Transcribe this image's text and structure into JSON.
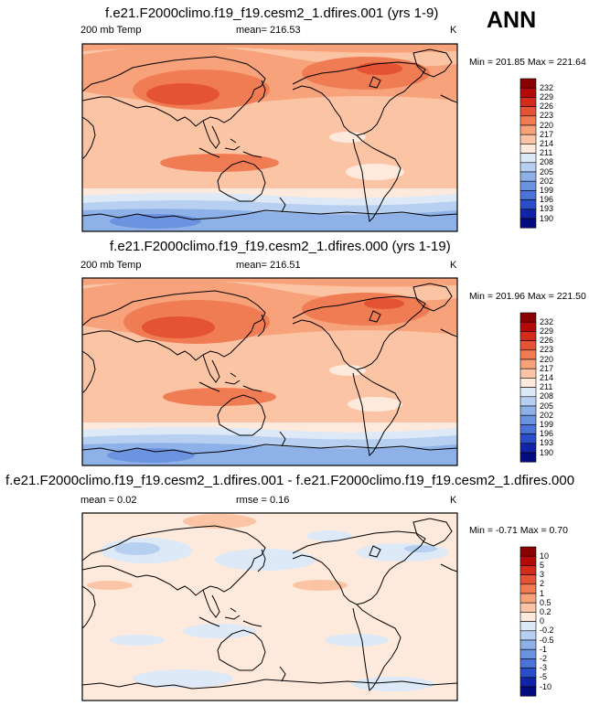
{
  "season": "ANN",
  "panels": [
    {
      "title": "f.e21.F2000climo.f19_f19.cesm2_1.dfires.001 (yrs 1-9)",
      "left_label": "200 mb Temp",
      "center_label": "mean= 216.53",
      "unit": "K",
      "minmax": "Min = 201.85 Max = 221.64"
    },
    {
      "title": "f.e21.F2000climo.f19_f19.cesm2_1.dfires.000 (yrs 1-19)",
      "left_label": "200 mb Temp",
      "center_label": "mean= 216.51",
      "unit": "K",
      "minmax": "Min = 201.96 Max = 221.50"
    },
    {
      "title": "f.e21.F2000climo.f19_f19.cesm2_1.dfires.001 - f.e21.F2000climo.f19_f19.cesm2_1.dfires.000",
      "left_label": "mean =   0.02",
      "center_label": "rmse =   0.16",
      "unit": "K",
      "minmax": "Min =  -0.71 Max =   0.70"
    }
  ],
  "colorbar_temp": {
    "levels": [
      "232",
      "229",
      "226",
      "223",
      "220",
      "217",
      "214",
      "211",
      "208",
      "205",
      "202",
      "199",
      "196",
      "193",
      "190"
    ],
    "colors": [
      "#8b0000",
      "#b40a0a",
      "#d42a1a",
      "#e55335",
      "#f07c54",
      "#f7a27a",
      "#fbc5a5",
      "#feeadc",
      "#dde9f7",
      "#b7cff0",
      "#8eb1e8",
      "#6c93e0",
      "#4a72d8",
      "#2a4ec9",
      "#1124a6",
      "#050c82"
    ]
  },
  "colorbar_diff": {
    "levels": [
      "10",
      "5",
      "3",
      "2",
      "1",
      "0.5",
      "0.2",
      "0",
      "-0.2",
      "-0.5",
      "-1",
      "-2",
      "-3",
      "-5",
      "-10"
    ],
    "colors": [
      "#8b0000",
      "#b40a0a",
      "#d42a1a",
      "#e55335",
      "#f07c54",
      "#f7a27a",
      "#fbc5a5",
      "#feeadc",
      "#dde9f7",
      "#b7cff0",
      "#8eb1e8",
      "#6c93e0",
      "#4a72d8",
      "#2a4ec9",
      "#1124a6",
      "#050c82"
    ]
  }
}
